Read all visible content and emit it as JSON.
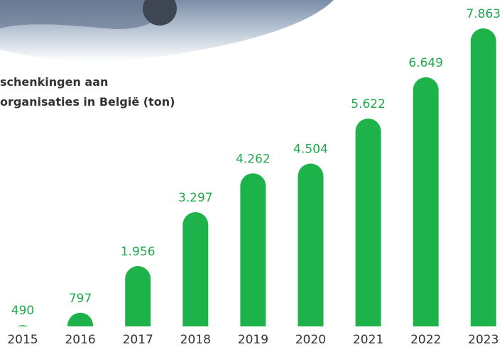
{
  "chart_data": {
    "type": "bar",
    "title": [
      "schenkingen aan",
      "organisaties in België (ton)"
    ],
    "categories": [
      "2015",
      "2016",
      "2017",
      "2018",
      "2019",
      "2020",
      "2021",
      "2022",
      "2023"
    ],
    "values": [
      490,
      797,
      1956,
      3297,
      4262,
      4504,
      5622,
      6649,
      7863
    ],
    "value_labels": [
      "490",
      "797",
      "1.956",
      "3.297",
      "4.262",
      "4.504",
      "5.622",
      "6.649",
      "7.863"
    ],
    "color": "#1db34a"
  }
}
